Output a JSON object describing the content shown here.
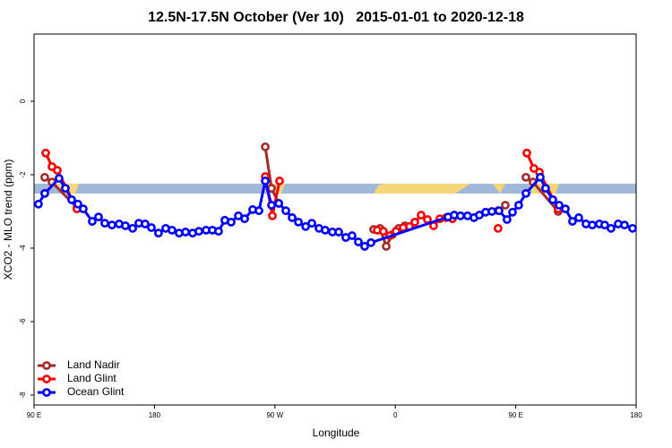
{
  "chart_data": {
    "type": "line",
    "title": "12.5N-17.5N October (Ver 10)   2015-01-01 to 2020-12-18",
    "x_label": "Longitude",
    "y_label": "XCO2 - MLO trend (ppm)",
    "xlim": [
      90,
      540
    ],
    "ylim": [
      -8.27,
      1.83
    ],
    "xticks": [
      {
        "value": 90,
        "label": "90 E"
      },
      180,
      {
        "value": 270,
        "label": "90 W"
      },
      {
        "value": 360,
        "label": "0"
      },
      {
        "value": 450,
        "label": "90 E"
      },
      {
        "value": 540,
        "label": "180"
      }
    ],
    "yticks": [
      0,
      -2,
      -4,
      -6,
      -8
    ],
    "legend": "bottom-left",
    "series": [
      {
        "name": "Land Nadir",
        "color": "#a52a2a",
        "x": [
          98,
          103.4,
          122.1,
          null,
          262.8,
          267.5,
          272.9,
          null,
          343.8,
          348.5,
          353.2,
          357.9,
          362.5,
          367.2,
          null,
          436.8,
          442.2,
          null,
          457.6,
          462.9,
          481.7
        ],
        "values": [
          -2.07,
          -2.2,
          -2.9,
          null,
          -1.24,
          -2.37,
          -2.78,
          null,
          -3.49,
          -3.46,
          -3.95,
          -3.63,
          -3.46,
          -3.39,
          null,
          -2.98,
          -2.83,
          null,
          -2.07,
          -2.2,
          -3.0
        ]
      },
      {
        "name": "Land Glint",
        "color": "#ff0000",
        "x": [
          98.7,
          103.4,
          107.4,
          122.1,
          null,
          262.8,
          268.1,
          273.5,
          null,
          346.5,
          351.1,
          355.8,
          360.5,
          365.9,
          370.6,
          374.6,
          379.3,
          384,
          388.6,
          393.3,
          398,
          402.7,
          null,
          436.8,
          null,
          458.3,
          463.6,
          467.7,
          481.7
        ],
        "values": [
          -1.41,
          -1.78,
          -1.88,
          -2.93,
          null,
          -2.05,
          -3.12,
          -2.17,
          null,
          -3.51,
          -3.54,
          -3.66,
          -3.54,
          -3.44,
          -3.41,
          -3.29,
          -3.1,
          -3.22,
          -3.39,
          -3.2,
          -3.17,
          -3.2,
          null,
          -3.46,
          null,
          -1.41,
          -1.83,
          -1.93,
          -2.93
        ]
      },
      {
        "name": "Ocean Glint",
        "color": "#0000ff",
        "x": [
          93.3,
          98,
          108.7,
          113.4,
          118.1,
          122.8,
          126.8,
          133.5,
          138.2,
          142.9,
          148.2,
          153.6,
          158.3,
          163.7,
          168.3,
          173,
          177.7,
          183,
          188.4,
          193.1,
          198.4,
          203.2,
          208.5,
          213.2,
          218.6,
          223.3,
          227.9,
          232.6,
          237.3,
          242.7,
          247.4,
          253.4,
          258.1,
          262.8,
          267.5,
          272.9,
          278.2,
          282.9,
          287.6,
          293,
          297.6,
          303,
          307.6,
          313,
          317.7,
          323,
          327.7,
          332.4,
          337.1,
          341.8,
          399.4,
          404,
          408.7,
          414,
          418.8,
          422.8,
          427.5,
          432.2,
          437.5,
          443.5,
          447.6,
          452.2,
          457.6,
          468.3,
          472.3,
          477.7,
          482.4,
          487.1,
          492.4,
          497.1,
          502.5,
          507.2,
          512.5,
          516.5,
          521.2,
          526.6,
          531.3,
          537.3
        ],
        "values": [
          -2.8,
          -2.51,
          -2.1,
          -2.37,
          -2.68,
          -2.8,
          -2.93,
          -3.27,
          -3.15,
          -3.32,
          -3.37,
          -3.34,
          -3.39,
          -3.46,
          -3.32,
          -3.34,
          -3.44,
          -3.59,
          -3.46,
          -3.51,
          -3.59,
          -3.56,
          -3.59,
          -3.54,
          -3.51,
          -3.51,
          -3.54,
          -3.24,
          -3.29,
          -3.12,
          -3.2,
          -2.95,
          -2.98,
          -2.17,
          -2.83,
          -2.78,
          -2.98,
          -3.17,
          -3.29,
          -3.41,
          -3.32,
          -3.46,
          -3.51,
          -3.56,
          -3.56,
          -3.71,
          -3.66,
          -3.83,
          -3.95,
          -3.85,
          -3.15,
          -3.1,
          -3.12,
          -3.12,
          -3.17,
          -3.1,
          -3.02,
          -3.0,
          -2.98,
          -3.22,
          -3.02,
          -2.83,
          -2.51,
          -2.07,
          -2.37,
          -2.68,
          -2.83,
          -2.93,
          -3.27,
          -3.17,
          -3.34,
          -3.37,
          -3.34,
          -3.37,
          -3.46,
          -3.34,
          -3.37,
          -3.46
        ]
      }
    ]
  }
}
